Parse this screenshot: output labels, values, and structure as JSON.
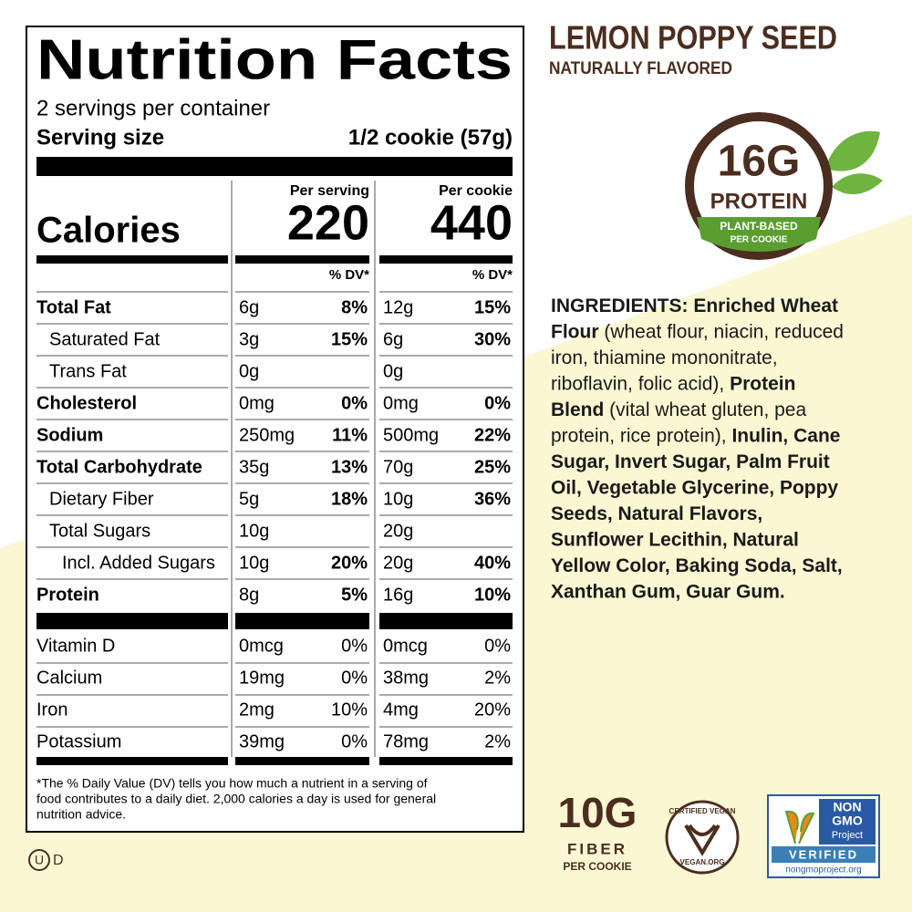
{
  "nutrition_facts": {
    "title": "Nutrition Facts",
    "servings": "2 servings per container",
    "serving_size_label": "Serving size",
    "serving_size": "1/2 cookie (57g)",
    "column_headers": [
      "Per serving",
      "Per cookie"
    ],
    "calories_label": "Calories",
    "calories": [
      220,
      440
    ],
    "dv_header": "% DV*",
    "nutrients": [
      {
        "name": "Total Fat",
        "values": [
          [
            "6g",
            "8%"
          ],
          [
            "12g",
            "15%"
          ]
        ],
        "sub": [
          {
            "name": "Saturated Fat",
            "values": [
              [
                "3g",
                "15%"
              ],
              [
                "6g",
                "30%"
              ]
            ]
          },
          {
            "name": "Trans Fat",
            "values": [
              [
                "0g"
              ],
              [
                "0g"
              ]
            ]
          }
        ]
      },
      {
        "name": "Cholesterol",
        "values": [
          [
            "0mg",
            "0%"
          ],
          [
            "0mg",
            "0%"
          ]
        ]
      },
      {
        "name": "Sodium",
        "values": [
          [
            "250mg",
            "11%"
          ],
          [
            "500mg",
            "22%"
          ]
        ]
      },
      {
        "name": "Total Carbohydrate",
        "values": [
          [
            "35g",
            "13%"
          ],
          [
            "70g",
            "25%"
          ]
        ],
        "sub": [
          {
            "name": "Dietary Fiber",
            "values": [
              [
                "5g",
                "18%"
              ],
              [
                "10g",
                "36%"
              ]
            ]
          },
          {
            "name": "Total Sugars",
            "values": [
              [
                "10g"
              ],
              [
                "20g"
              ]
            ],
            "sub": [
              {
                "name": "Incl. Added Sugars",
                "values": [
                  [
                    "10g",
                    "20%"
                  ],
                  [
                    "20g",
                    "40%"
                  ]
                ]
              }
            ]
          }
        ]
      },
      {
        "name": "Protein",
        "values": [
          [
            "8g",
            "5%"
          ],
          [
            "16g",
            "10%"
          ]
        ]
      }
    ],
    "vitamins": [
      {
        "name": "Vitamin D",
        "values": [
          [
            "0mcg",
            "0%"
          ],
          [
            "0mcg",
            "0%"
          ]
        ]
      },
      {
        "name": "Calcium",
        "values": [
          [
            "19mg",
            "0%"
          ],
          [
            "38mg",
            "2%"
          ]
        ]
      },
      {
        "name": "Iron",
        "values": [
          [
            "2mg",
            "10%"
          ],
          [
            "4mg",
            "20%"
          ]
        ]
      },
      {
        "name": "Potassium",
        "values": [
          [
            "39mg",
            "0%"
          ],
          [
            "78mg",
            "2%"
          ]
        ]
      }
    ],
    "footnote": [
      "*The % Daily Value (DV) tells you how much a nutrient in a serving of",
      "food contributes to a daily diet. 2,000 calories a day is used for general",
      "nutrition advice."
    ]
  },
  "kosher": {
    "symbol": "U",
    "suffix": "D"
  },
  "product": {
    "name": "LEMON POPPY SEED",
    "flavor": "NATURALLY FLAVORED"
  },
  "protein_badge": {
    "amount": "16G",
    "label": "PROTEIN",
    "banner": [
      "PLANT-BASED",
      "PER COOKIE"
    ]
  },
  "ingredients": [
    [
      {
        "text": "INGREDIENTS: Enriched Wheat",
        "bold": true
      }
    ],
    [
      {
        "text": "Flour",
        "bold": true
      },
      {
        "text": " (wheat flour, niacin, reduced",
        "bold": false
      }
    ],
    [
      {
        "text": "iron, thiamine mononitrate,",
        "bold": false
      }
    ],
    [
      {
        "text": "riboflavin, folic acid), ",
        "bold": false
      },
      {
        "text": "Protein",
        "bold": true
      }
    ],
    [
      {
        "text": "Blend",
        "bold": true
      },
      {
        "text": " (vital wheat gluten, pea",
        "bold": false
      }
    ],
    [
      {
        "text": "protein, rice protein), ",
        "bold": false
      },
      {
        "text": "Inulin, Cane",
        "bold": true
      }
    ],
    [
      {
        "text": "Sugar, Invert Sugar, Palm Fruit",
        "bold": true
      }
    ],
    [
      {
        "text": "Oil, Vegetable Glycerine, Poppy",
        "bold": true
      }
    ],
    [
      {
        "text": "Seeds, Natural Flavors,",
        "bold": true
      }
    ],
    [
      {
        "text": "Sunflower Lecithin, Natural",
        "bold": true
      }
    ],
    [
      {
        "text": "Yellow Color, Baking Soda, Salt,",
        "bold": true
      }
    ],
    [
      {
        "text": "Xanthan Gum, Guar Gum.",
        "bold": true
      }
    ]
  ],
  "fiber_badge": {
    "amount": "10G",
    "label": "FIBER",
    "sub": "PER COOKIE"
  },
  "vegan_badge": {
    "top": "CERTIFIED VEGAN",
    "bottom": "VEGAN.ORG"
  },
  "non_gmo_badge": {
    "lines": [
      "NON",
      "GMO",
      "Project"
    ],
    "verified": "VERIFIED",
    "url": "nongmoproject.org"
  }
}
